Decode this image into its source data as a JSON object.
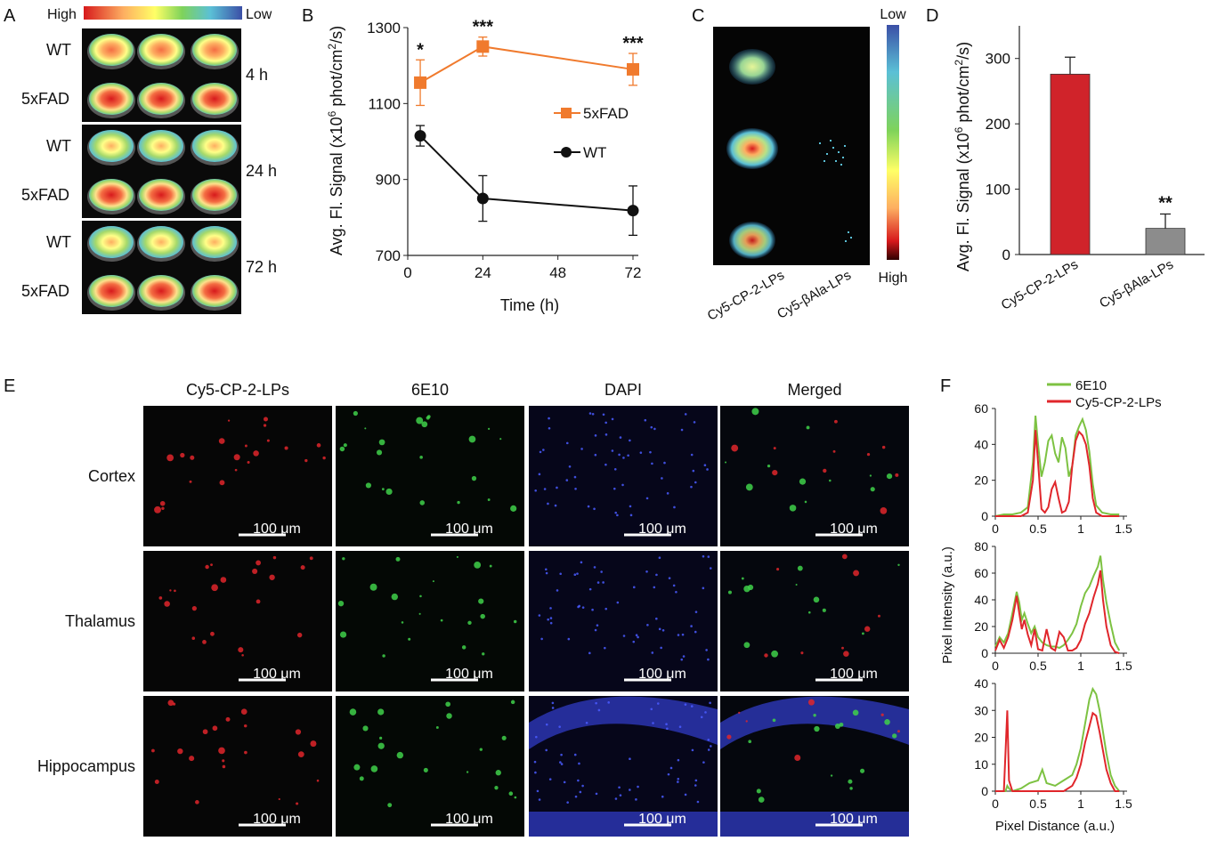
{
  "panel_letters": [
    "A",
    "B",
    "C",
    "D",
    "E",
    "F"
  ],
  "panelA": {
    "scale_high": "High",
    "scale_low": "Low",
    "row_labels": [
      "WT",
      "5xFAD"
    ],
    "timepoints": [
      "4 h",
      "24 h",
      "72 h"
    ]
  },
  "panelC": {
    "scale_low": "Low",
    "scale_high": "High",
    "groups": [
      "Cy5-CP-2-LPs",
      "Cy5-βAla-LPs"
    ]
  },
  "panelE": {
    "columns": [
      "Cy5-CP-2-LPs",
      "6E10",
      "DAPI",
      "Merged"
    ],
    "rows": [
      "Cortex",
      "Thalamus",
      "Hippocampus"
    ],
    "scale_bar": "100 μm"
  },
  "chart_data": [
    {
      "panel": "B",
      "type": "line",
      "ylabel_prefix": "Avg. Fl. Signal (x10",
      "ylabel_exp1": "6",
      "ylabel_mid": " phot/cm",
      "ylabel_exp2": "2",
      "ylabel_suffix": "/s)",
      "xlabel": "Time (h)",
      "ylim": [
        700,
        1300
      ],
      "xlim": [
        0,
        72
      ],
      "yticks": [
        700,
        900,
        1100,
        1300
      ],
      "xticks": [
        0,
        24,
        48,
        72
      ],
      "x": [
        4,
        24,
        72
      ],
      "series": [
        {
          "name": "5xFAD",
          "values": [
            1155,
            1250,
            1190
          ],
          "errors": [
            60,
            25,
            42
          ],
          "color": "#F07A2D",
          "marker": "square"
        },
        {
          "name": "WT",
          "values": [
            1015,
            850,
            818
          ],
          "errors": [
            27,
            60,
            65
          ],
          "color": "#111111",
          "marker": "circle"
        }
      ],
      "significance": [
        "*",
        "***",
        "***"
      ],
      "legend_position": "right"
    },
    {
      "panel": "D",
      "type": "bar",
      "ylabel_prefix": "Avg. Fl. Signal (x10",
      "ylabel_exp1": "6",
      "ylabel_mid": " phot/cm",
      "ylabel_exp2": "2",
      "ylabel_suffix": "/s)",
      "categories": [
        "Cy5-CP-2-LPs",
        "Cy5-βAla-LPs"
      ],
      "values": [
        276,
        40
      ],
      "errors": [
        26,
        22
      ],
      "colors": [
        "#D0232A",
        "#8C8C8C"
      ],
      "ylim": [
        0,
        350
      ],
      "yticks": [
        0,
        100,
        200,
        300
      ],
      "significance": [
        "",
        "**"
      ]
    },
    {
      "panel": "F",
      "type": "line",
      "legend": [
        "6E10",
        "Cy5-CP-2-LPs"
      ],
      "series_colors": [
        "#7DC242",
        "#E0262B"
      ],
      "ylabel": "Pixel Intensity (a.u.)",
      "xlabel": "Pixel Distance (a.u.)",
      "xlim": [
        0,
        1.5
      ],
      "xticks": [
        0,
        0.5,
        1,
        1.5
      ],
      "xtick_labels": [
        "0",
        "0.5",
        "1",
        "1.5"
      ],
      "subplots": [
        {
          "row": "Cortex",
          "ylim": [
            0,
            60
          ],
          "yticks": [
            0,
            20,
            40,
            60
          ],
          "x": [
            0,
            0.1,
            0.2,
            0.3,
            0.38,
            0.44,
            0.47,
            0.5,
            0.54,
            0.58,
            0.62,
            0.66,
            0.7,
            0.74,
            0.78,
            0.82,
            0.86,
            0.9,
            0.94,
            0.98,
            1.02,
            1.06,
            1.1,
            1.14,
            1.18,
            1.25,
            1.35,
            1.45
          ],
          "series": [
            {
              "name": "6E10",
              "values": [
                0,
                1,
                1,
                2,
                5,
                30,
                56,
                40,
                22,
                30,
                42,
                45,
                35,
                30,
                44,
                38,
                22,
                28,
                45,
                50,
                54,
                48,
                36,
                18,
                6,
                2,
                1,
                1
              ]
            },
            {
              "name": "Cy5-CP-2-LPs",
              "values": [
                0,
                0,
                0,
                0,
                2,
                20,
                48,
                30,
                4,
                2,
                5,
                15,
                19,
                10,
                2,
                3,
                8,
                28,
                42,
                47,
                45,
                40,
                28,
                10,
                2,
                0,
                0,
                0
              ]
            }
          ]
        },
        {
          "row": "Thalamus",
          "ylim": [
            0,
            80
          ],
          "yticks": [
            0,
            20,
            40,
            60,
            80
          ],
          "x": [
            0,
            0.05,
            0.1,
            0.15,
            0.2,
            0.25,
            0.28,
            0.31,
            0.34,
            0.38,
            0.42,
            0.46,
            0.5,
            0.55,
            0.6,
            0.65,
            0.7,
            0.75,
            0.8,
            0.85,
            0.9,
            0.95,
            1.0,
            1.05,
            1.1,
            1.15,
            1.2,
            1.23,
            1.26,
            1.3,
            1.35,
            1.4,
            1.45
          ],
          "series": [
            {
              "name": "6E10",
              "values": [
                5,
                12,
                8,
                15,
                30,
                46,
                38,
                25,
                30,
                22,
                15,
                20,
                12,
                8,
                6,
                5,
                5,
                4,
                6,
                10,
                15,
                22,
                35,
                45,
                50,
                58,
                65,
                73,
                55,
                38,
                22,
                8,
                2
              ]
            },
            {
              "name": "Cy5-CP-2-LPs",
              "values": [
                2,
                10,
                4,
                12,
                25,
                43,
                30,
                18,
                25,
                14,
                6,
                18,
                3,
                2,
                18,
                4,
                2,
                16,
                12,
                2,
                2,
                4,
                10,
                22,
                30,
                42,
                52,
                62,
                40,
                20,
                6,
                1,
                0
              ]
            }
          ]
        },
        {
          "row": "Hippocampus",
          "ylim": [
            0,
            40
          ],
          "yticks": [
            0,
            10,
            20,
            30,
            40
          ],
          "x": [
            0,
            0.1,
            0.12,
            0.14,
            0.16,
            0.2,
            0.3,
            0.4,
            0.5,
            0.55,
            0.6,
            0.7,
            0.8,
            0.9,
            0.95,
            1.0,
            1.05,
            1.1,
            1.14,
            1.18,
            1.22,
            1.26,
            1.3,
            1.35,
            1.4,
            1.45
          ],
          "series": [
            {
              "name": "6E10",
              "values": [
                0,
                0,
                0,
                2,
                1,
                0,
                1,
                3,
                4,
                8,
                3,
                2,
                4,
                6,
                10,
                16,
                25,
                34,
                38,
                36,
                30,
                22,
                14,
                6,
                2,
                0
              ]
            },
            {
              "name": "Cy5-CP-2-LPs",
              "values": [
                0,
                0,
                15,
                30,
                4,
                0,
                0,
                0,
                0,
                0,
                0,
                0,
                0,
                2,
                5,
                10,
                18,
                24,
                29,
                28,
                22,
                15,
                8,
                3,
                0,
                0
              ]
            }
          ]
        }
      ]
    }
  ]
}
